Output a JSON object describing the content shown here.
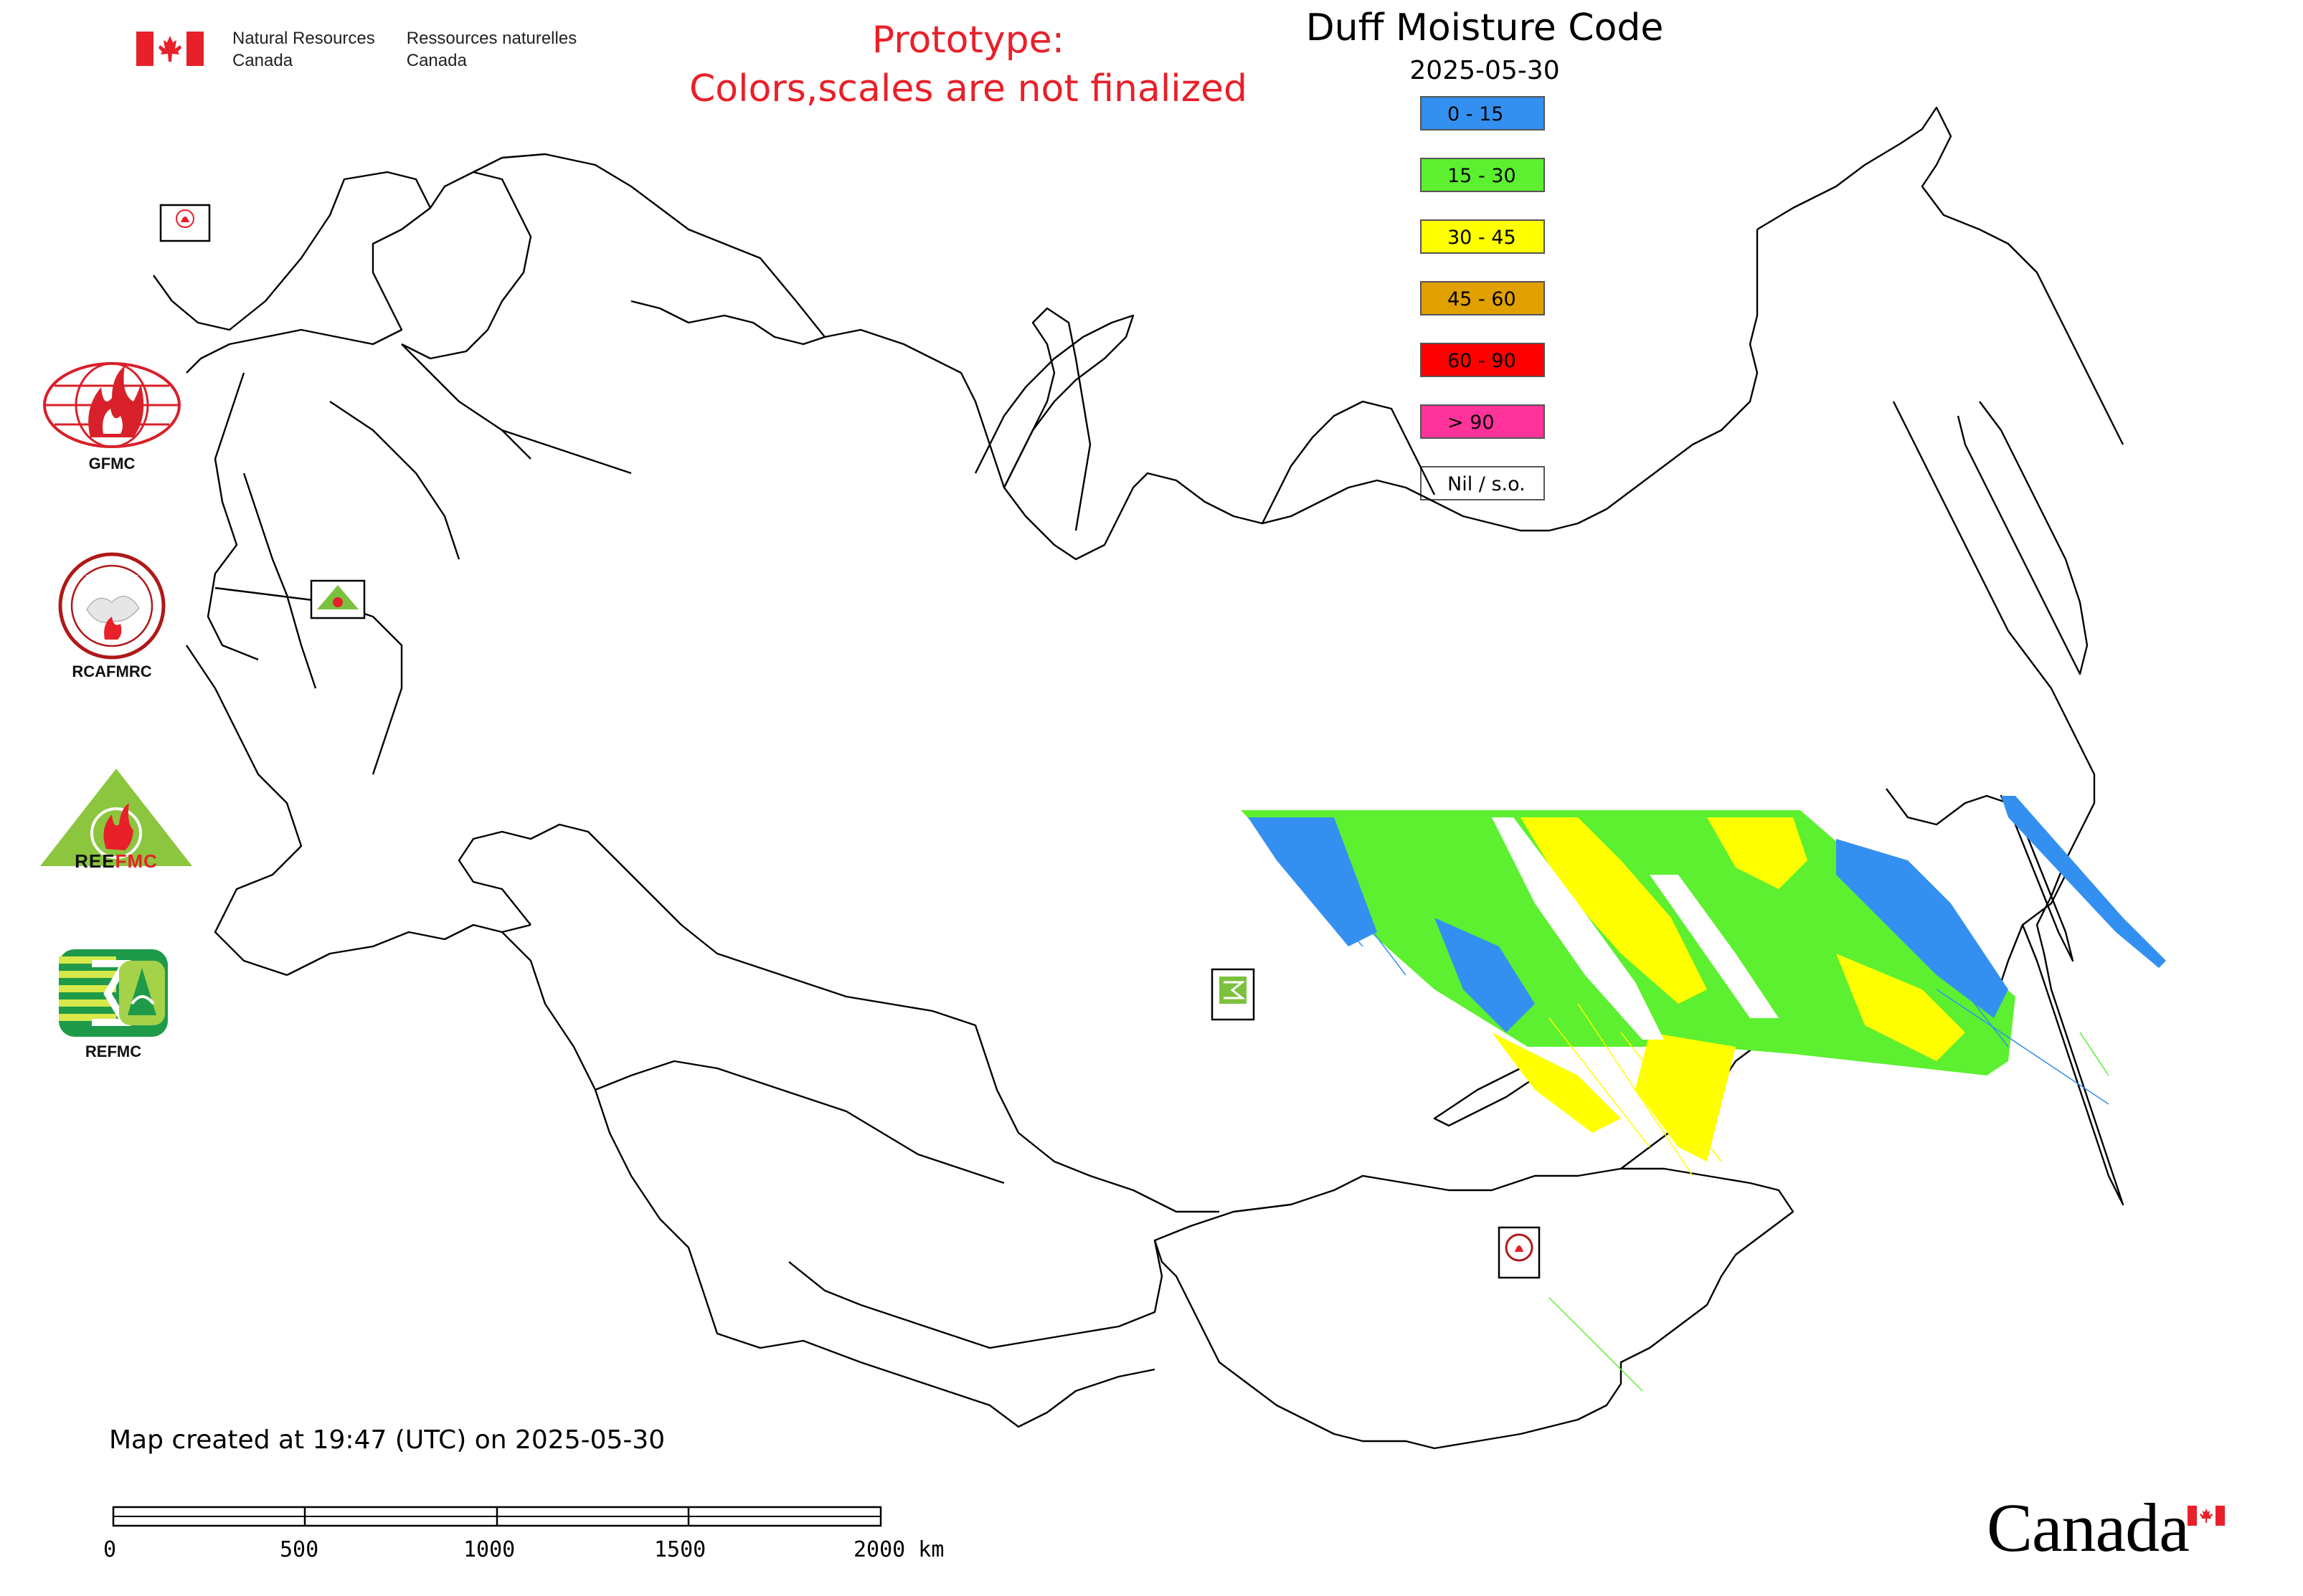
{
  "header": {
    "dept_en_line1": "Natural Resources",
    "dept_en_line2": "Canada",
    "dept_fr_line1": "Ressources naturelles",
    "dept_fr_line2": "Canada",
    "prototype_line1": "Prototype:",
    "prototype_line2": "Colors,scales are not finalized",
    "map_title": "Duff Moisture Code",
    "map_date": "2025-05-30"
  },
  "legend": {
    "items": [
      {
        "label": "0 - 15",
        "color": "#3390f0"
      },
      {
        "label": "15 - 30",
        "color": "#5cf030"
      },
      {
        "label": "30 - 45",
        "color": "#ffff00"
      },
      {
        "label": "45 - 60",
        "color": "#e0a000"
      },
      {
        "label": "60 - 90",
        "color": "#ff0000"
      },
      {
        "label": "> 90",
        "color": "#ff3399"
      },
      {
        "label": "Nil / s.o.",
        "color": "#ffffff"
      }
    ]
  },
  "agencies": {
    "gfmc": "GFMC",
    "rcafmrc": "RCAFMRC",
    "reefmc_logo_text": "REEFMC",
    "refmc": "REFMC"
  },
  "footer": {
    "created_text": "Map created at 19:47 (UTC) on 2025-05-30",
    "scale_labels": [
      "0",
      "500",
      "1000",
      "1500",
      "2000 km"
    ],
    "wordmark": "Canada"
  },
  "map": {
    "border_color": "#000000",
    "land_color": "#ffffff"
  }
}
